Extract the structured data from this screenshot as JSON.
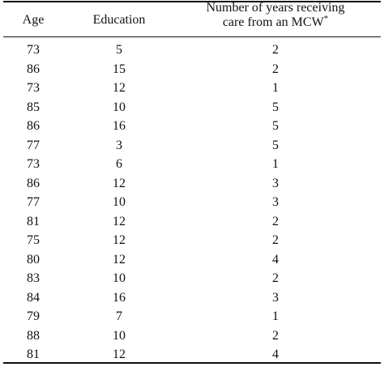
{
  "table": {
    "headers": {
      "age": "Age",
      "education": "Education",
      "years_line1": "Number of years receiving",
      "years_line2": "care from an MCW",
      "years_marker": "*"
    },
    "rows": [
      {
        "age": "73",
        "education": "5",
        "years": "2"
      },
      {
        "age": "86",
        "education": "15",
        "years": "2"
      },
      {
        "age": "73",
        "education": "12",
        "years": "1"
      },
      {
        "age": "85",
        "education": "10",
        "years": "5"
      },
      {
        "age": "86",
        "education": "16",
        "years": "5"
      },
      {
        "age": "77",
        "education": "3",
        "years": "5"
      },
      {
        "age": "73",
        "education": "6",
        "years": "1"
      },
      {
        "age": "86",
        "education": "12",
        "years": "3"
      },
      {
        "age": "77",
        "education": "10",
        "years": "3"
      },
      {
        "age": "81",
        "education": "12",
        "years": "2"
      },
      {
        "age": "75",
        "education": "12",
        "years": "2"
      },
      {
        "age": "80",
        "education": "12",
        "years": "4"
      },
      {
        "age": "83",
        "education": "10",
        "years": "2"
      },
      {
        "age": "84",
        "education": "16",
        "years": "3"
      },
      {
        "age": "79",
        "education": "7",
        "years": "1"
      },
      {
        "age": "88",
        "education": "10",
        "years": "2"
      },
      {
        "age": "81",
        "education": "12",
        "years": "4"
      }
    ]
  }
}
